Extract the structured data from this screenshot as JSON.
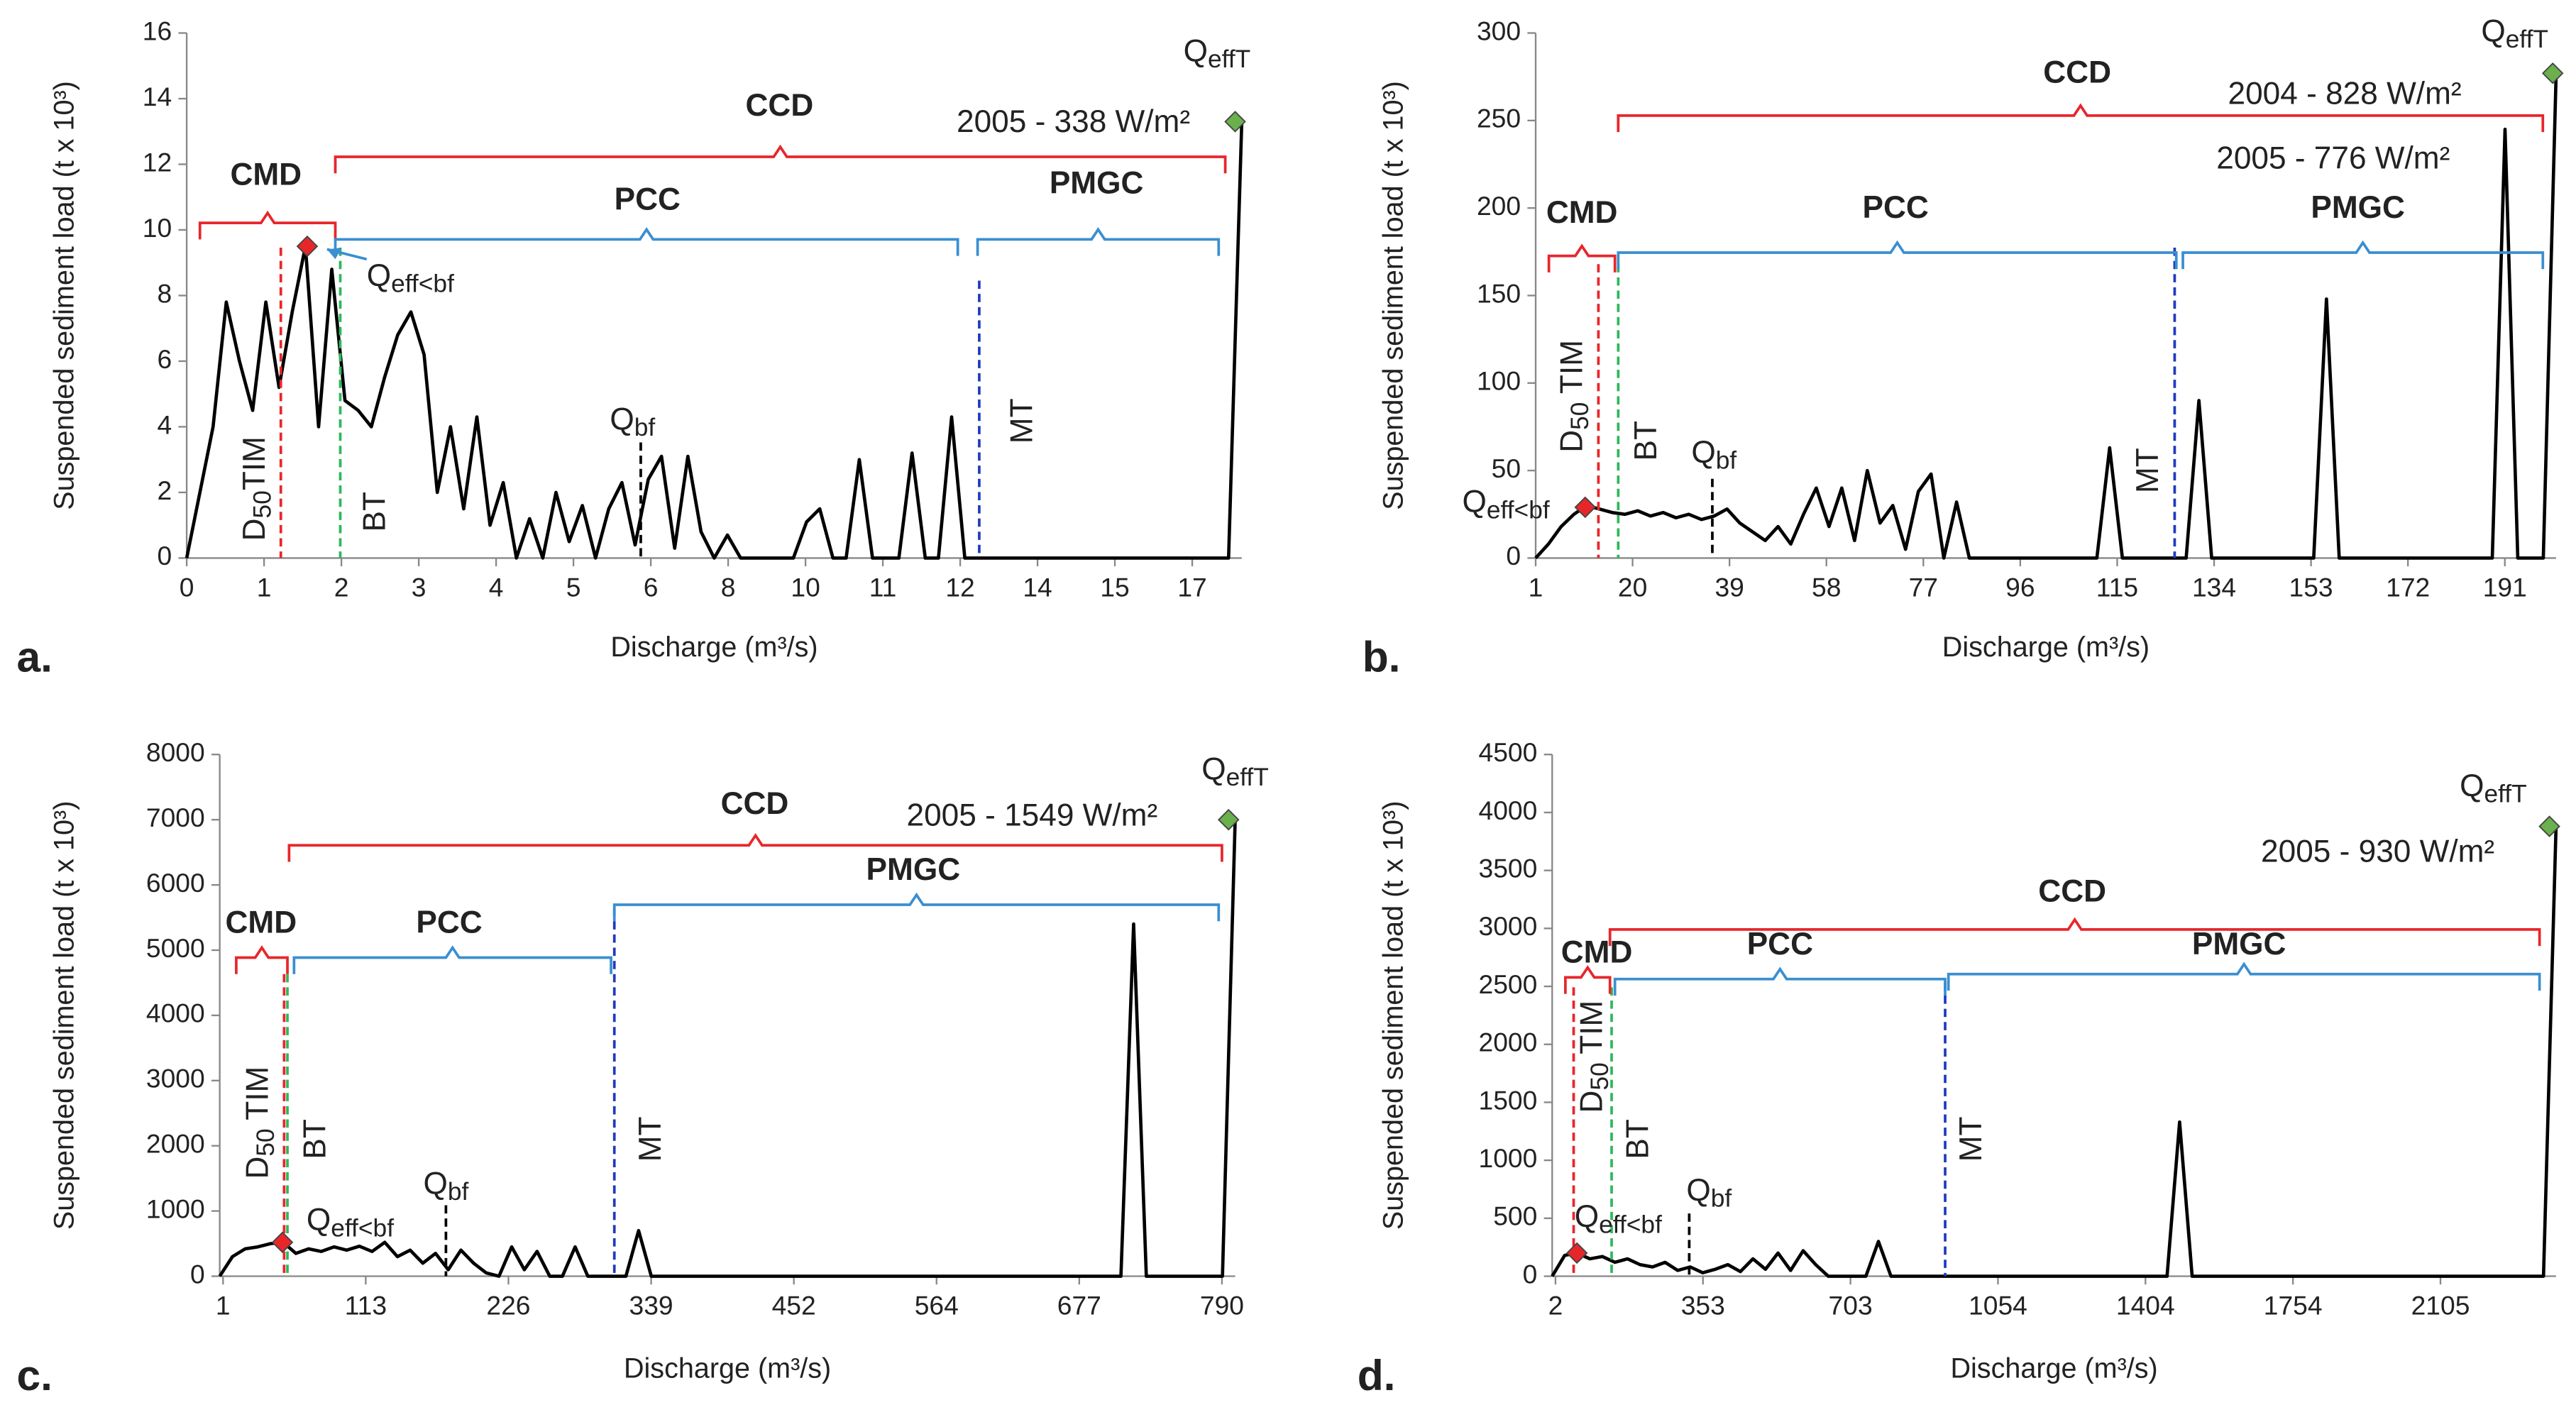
{
  "chart_data": [
    {
      "type": "line",
      "panel_label": "a.",
      "xlabel": "Discharge (m³/s)",
      "ylabel": "Suspended sediment load (t x 10³)",
      "xtick_labels": [
        "0",
        "1",
        "2",
        "3",
        "4",
        "5",
        "6",
        "8",
        "10",
        "11",
        "12",
        "14",
        "15",
        "17"
      ],
      "ylim": [
        0,
        16
      ],
      "yticks": [
        0,
        2,
        4,
        6,
        8,
        10,
        12,
        14,
        16
      ],
      "color": "#000000",
      "values": [
        0,
        2,
        4,
        7.8,
        6,
        4.5,
        7.8,
        5.2,
        7.5,
        9.5,
        4,
        8.8,
        4.8,
        4.5,
        4,
        5.5,
        6.8,
        7.5,
        6.2,
        2,
        4,
        1.5,
        4.3,
        1,
        2.3,
        0,
        1.2,
        0,
        2,
        0.5,
        1.6,
        0,
        1.5,
        2.3,
        0.4,
        2.4,
        3.1,
        0.3,
        3.1,
        0.8,
        0,
        0.7,
        0,
        0,
        0,
        0,
        0,
        1.1,
        1.5,
        0,
        0,
        3,
        0,
        0,
        0,
        3.2,
        0,
        0,
        4.3,
        0,
        0,
        0,
        0,
        0,
        0,
        0,
        0,
        0,
        0,
        0,
        0,
        0,
        0,
        0,
        0,
        0,
        0,
        0,
        0,
        0,
        13.3
      ],
      "brackets": [
        {
          "label": "CMD",
          "color": "#e8262a"
        },
        {
          "label": "CCD",
          "color": "#e8262a"
        },
        {
          "label": "PCC",
          "color": "#3a8fd0"
        },
        {
          "label": "PMGC",
          "color": "#3a8fd0"
        }
      ],
      "reference_lines": [
        {
          "label": {
            "main": "D",
            "sub": "50",
            "rest": "TIM"
          },
          "color": "#e8262a"
        },
        {
          "label": "BT",
          "color": "#2eb85c"
        },
        {
          "label": {
            "main": "Q",
            "sub": "bf"
          },
          "color": "#000000"
        },
        {
          "label": "MT",
          "color": "#1f3bbf"
        }
      ],
      "points": [
        {
          "label": {
            "main": "Q",
            "sub": "eff<bf"
          },
          "value": 9.5,
          "color": "#e8262a"
        },
        {
          "label": {
            "main": "Q",
            "sub": "effT"
          },
          "value": 13.3,
          "color": "#6ab04c"
        }
      ],
      "notes": [
        "2005 - 338 W/m²"
      ]
    },
    {
      "type": "line",
      "panel_label": "b.",
      "xlabel": "Discharge (m³/s)",
      "ylabel": "Suspended sediment load (t x 10³)",
      "xtick_labels": [
        "1",
        "20",
        "39",
        "58",
        "77",
        "96",
        "115",
        "134",
        "153",
        "172",
        "191"
      ],
      "ylim": [
        0,
        300
      ],
      "yticks": [
        0,
        50,
        100,
        150,
        200,
        250,
        300
      ],
      "color": "#000000",
      "values": [
        0,
        8,
        18,
        25,
        30,
        28,
        26,
        25,
        27,
        24,
        26,
        23,
        25,
        22,
        24,
        28,
        20,
        15,
        10,
        18,
        8,
        25,
        40,
        18,
        40,
        10,
        50,
        20,
        30,
        5,
        38,
        48,
        0,
        32,
        0,
        0,
        0,
        0,
        0,
        0,
        0,
        0,
        0,
        0,
        0,
        63,
        0,
        0,
        0,
        0,
        0,
        0,
        90,
        0,
        0,
        0,
        0,
        0,
        0,
        0,
        0,
        0,
        148,
        0,
        0,
        0,
        0,
        0,
        0,
        0,
        0,
        0,
        0,
        0,
        0,
        0,
        245,
        0,
        0,
        0,
        275
      ],
      "brackets": [
        {
          "label": "CMD",
          "color": "#e8262a"
        },
        {
          "label": "CCD",
          "color": "#e8262a"
        },
        {
          "label": "PCC",
          "color": "#3a8fd0"
        },
        {
          "label": "PMGC",
          "color": "#3a8fd0"
        }
      ],
      "reference_lines": [
        {
          "label": {
            "main": "D",
            "sub": "50",
            "rest": " TIM"
          },
          "color": "#e8262a"
        },
        {
          "label": "BT",
          "color": "#2eb85c"
        },
        {
          "label": {
            "main": "Q",
            "sub": "bf"
          },
          "color": "#000000"
        },
        {
          "label": "MT",
          "color": "#1f3bbf"
        }
      ],
      "points": [
        {
          "label": {
            "main": "Q",
            "sub": "eff<bf"
          },
          "value": 29,
          "color": "#e8262a"
        },
        {
          "label": {
            "main": "Q",
            "sub": "effT"
          },
          "value": 277,
          "color": "#6ab04c"
        }
      ],
      "notes": [
        "2004 - 828 W/m²",
        "2005 - 776 W/m²"
      ]
    },
    {
      "type": "line",
      "panel_label": "c.",
      "xlabel": "Discharge (m³/s)",
      "ylabel": "Suspended sediment load (t x 10³)",
      "xtick_labels": [
        "1",
        "113",
        "226",
        "339",
        "452",
        "564",
        "677",
        "790"
      ],
      "ylim": [
        0,
        8000
      ],
      "yticks": [
        0,
        1000,
        2000,
        3000,
        4000,
        5000,
        6000,
        7000,
        8000
      ],
      "color": "#000000",
      "values": [
        0,
        300,
        420,
        450,
        500,
        520,
        350,
        420,
        380,
        450,
        400,
        460,
        380,
        520,
        300,
        400,
        200,
        350,
        100,
        400,
        200,
        50,
        0,
        450,
        100,
        380,
        0,
        0,
        450,
        0,
        0,
        0,
        0,
        700,
        0,
        0,
        0,
        0,
        0,
        0,
        0,
        0,
        0,
        0,
        0,
        0,
        0,
        0,
        0,
        0,
        0,
        0,
        0,
        0,
        0,
        0,
        0,
        0,
        0,
        0,
        0,
        0,
        0,
        0,
        0,
        0,
        0,
        0,
        0,
        0,
        0,
        0,
        5400,
        0,
        0,
        0,
        0,
        0,
        0,
        0,
        7000
      ],
      "brackets": [
        {
          "label": "CMD",
          "color": "#e8262a"
        },
        {
          "label": "CCD",
          "color": "#e8262a"
        },
        {
          "label": "PCC",
          "color": "#3a8fd0"
        },
        {
          "label": "PMGC",
          "color": "#3a8fd0"
        }
      ],
      "reference_lines": [
        {
          "label": {
            "main": "D",
            "sub": "50",
            "rest": " TIM"
          },
          "color": "#e8262a"
        },
        {
          "label": "BT",
          "color": "#2eb85c"
        },
        {
          "label": {
            "main": "Q",
            "sub": "bf"
          },
          "color": "#000000"
        },
        {
          "label": "MT",
          "color": "#1f3bbf"
        }
      ],
      "points": [
        {
          "label": {
            "main": "Q",
            "sub": "eff<bf"
          },
          "value": 520,
          "color": "#e8262a"
        },
        {
          "label": {
            "main": "Q",
            "sub": "effT"
          },
          "value": 7000,
          "color": "#6ab04c"
        }
      ],
      "notes": [
        "2005 - 1549 W/m²"
      ]
    },
    {
      "type": "line",
      "panel_label": "d.",
      "xlabel": "Discharge (m³/s)",
      "ylabel": "Suspended sediment load (t x 10³)",
      "xtick_labels": [
        "2",
        "353",
        "703",
        "1054",
        "1404",
        "1754",
        "2105"
      ],
      "ylim": [
        0,
        4500
      ],
      "yticks": [
        0,
        500,
        1000,
        1500,
        2000,
        2500,
        3000,
        3500,
        4000,
        4500
      ],
      "color": "#000000",
      "values": [
        0,
        180,
        200,
        150,
        170,
        120,
        150,
        100,
        80,
        120,
        50,
        80,
        30,
        60,
        100,
        40,
        150,
        60,
        200,
        50,
        220,
        100,
        0,
        0,
        0,
        0,
        300,
        0,
        0,
        0,
        0,
        0,
        0,
        0,
        0,
        0,
        0,
        0,
        0,
        0,
        0,
        0,
        0,
        0,
        0,
        0,
        0,
        0,
        0,
        0,
        1330,
        0,
        0,
        0,
        0,
        0,
        0,
        0,
        0,
        0,
        0,
        0,
        0,
        0,
        0,
        0,
        0,
        0,
        0,
        0,
        0,
        0,
        0,
        0,
        0,
        0,
        0,
        0,
        0,
        0,
        3880
      ],
      "brackets": [
        {
          "label": "CMD",
          "color": "#e8262a"
        },
        {
          "label": "CCD",
          "color": "#e8262a"
        },
        {
          "label": "PCC",
          "color": "#3a8fd0"
        },
        {
          "label": "PMGC",
          "color": "#3a8fd0"
        }
      ],
      "reference_lines": [
        {
          "label": {
            "main": "D",
            "sub": "50",
            "rest": " TIM"
          },
          "color": "#e8262a"
        },
        {
          "label": "BT",
          "color": "#2eb85c"
        },
        {
          "label": {
            "main": "Q",
            "sub": "bf"
          },
          "color": "#000000"
        },
        {
          "label": "MT",
          "color": "#1f3bbf"
        }
      ],
      "points": [
        {
          "label": {
            "main": "Q",
            "sub": "eff<bf"
          },
          "value": 200,
          "color": "#e8262a"
        },
        {
          "label": {
            "main": "Q",
            "sub": "effT"
          },
          "value": 3880,
          "color": "#6ab04c"
        }
      ],
      "notes": [
        "2005 - 930 W/m²"
      ]
    }
  ]
}
